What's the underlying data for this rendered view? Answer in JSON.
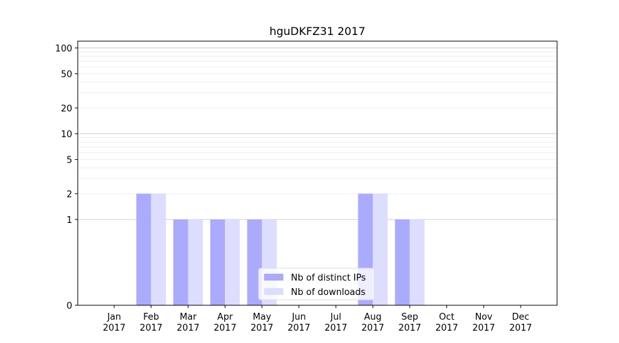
{
  "chart_data": {
    "type": "bar",
    "title": "hguDKFZ31 2017",
    "xlabel": "",
    "ylabel": "",
    "y_scale": "symlog",
    "ylim": [
      0,
      120
    ],
    "y_ticks": [
      0,
      1,
      2,
      5,
      10,
      20,
      50,
      100
    ],
    "grid": "horizontal",
    "legend_position": "lower center",
    "categories": [
      [
        "Jan",
        "2017"
      ],
      [
        "Feb",
        "2017"
      ],
      [
        "Mar",
        "2017"
      ],
      [
        "Apr",
        "2017"
      ],
      [
        "May",
        "2017"
      ],
      [
        "Jun",
        "2017"
      ],
      [
        "Jul",
        "2017"
      ],
      [
        "Aug",
        "2017"
      ],
      [
        "Sep",
        "2017"
      ],
      [
        "Oct",
        "2017"
      ],
      [
        "Nov",
        "2017"
      ],
      [
        "Dec",
        "2017"
      ]
    ],
    "series": [
      {
        "name": "Nb of distinct IPs",
        "color": "#aaaaff",
        "values": [
          0,
          2,
          1,
          1,
          1,
          0,
          0,
          2,
          1,
          0,
          0,
          0
        ]
      },
      {
        "name": "Nb of downloads",
        "color": "#ddddff",
        "values": [
          0,
          2,
          1,
          1,
          1,
          0,
          0,
          2,
          1,
          0,
          0,
          0
        ]
      }
    ]
  }
}
